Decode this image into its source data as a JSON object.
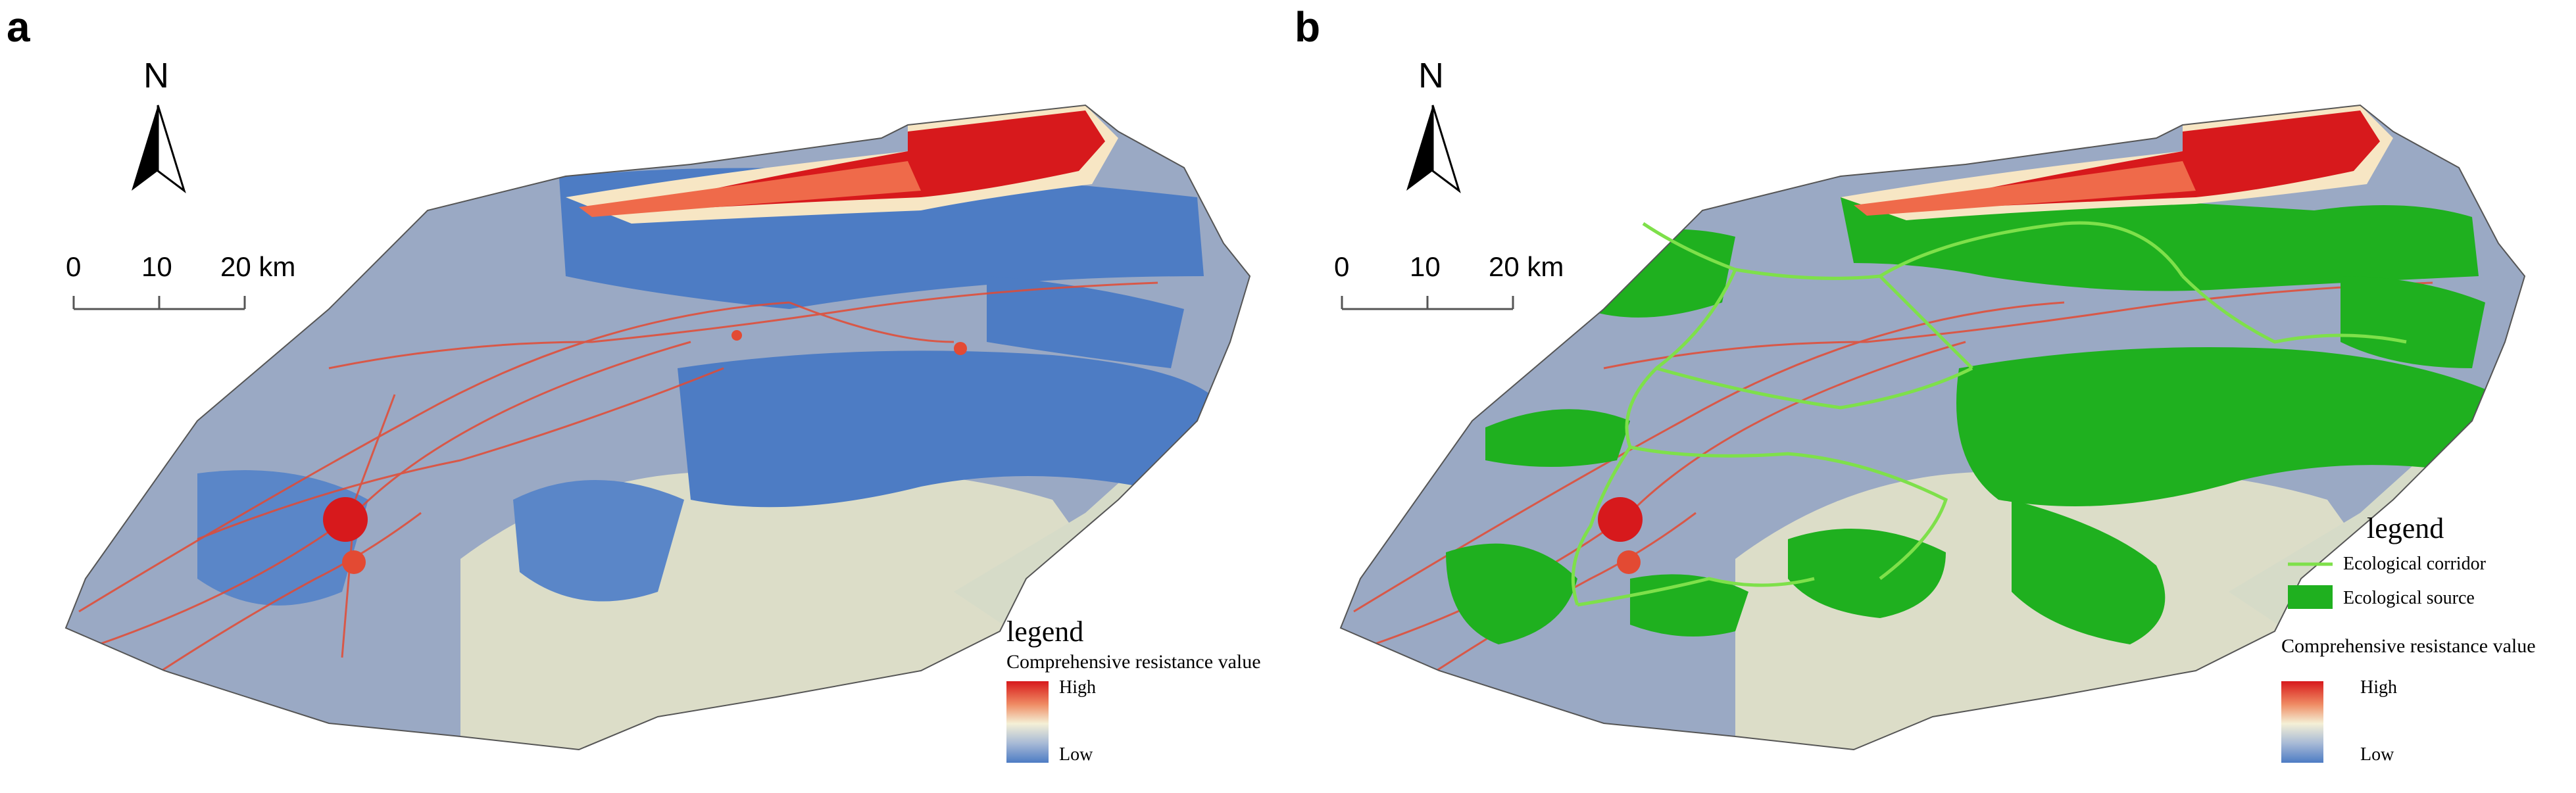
{
  "panels": [
    {
      "letter": "a",
      "north": "N",
      "scale": {
        "ticks": [
          "0",
          "10",
          "20 km"
        ]
      },
      "legend": {
        "title": "legend",
        "resistance_title": "Comprehensive resistance value",
        "high": "High",
        "low": "Low"
      }
    },
    {
      "letter": "b",
      "north": "N",
      "scale": {
        "ticks": [
          "0",
          "10",
          "20 km"
        ]
      },
      "legend": {
        "title": "legend",
        "corridor": "Ecological corridor",
        "source": "Ecological source",
        "resistance_title": "Comprehensive resistance value",
        "high": "High",
        "low": "Low"
      }
    }
  ],
  "colors": {
    "high": "#d7191c",
    "mid": "#f4f0d6",
    "low": "#4d7cc4",
    "grey_blue": "#9aa9c4",
    "source_green": "#1fb01f",
    "corridor_green": "#7ee04a"
  }
}
